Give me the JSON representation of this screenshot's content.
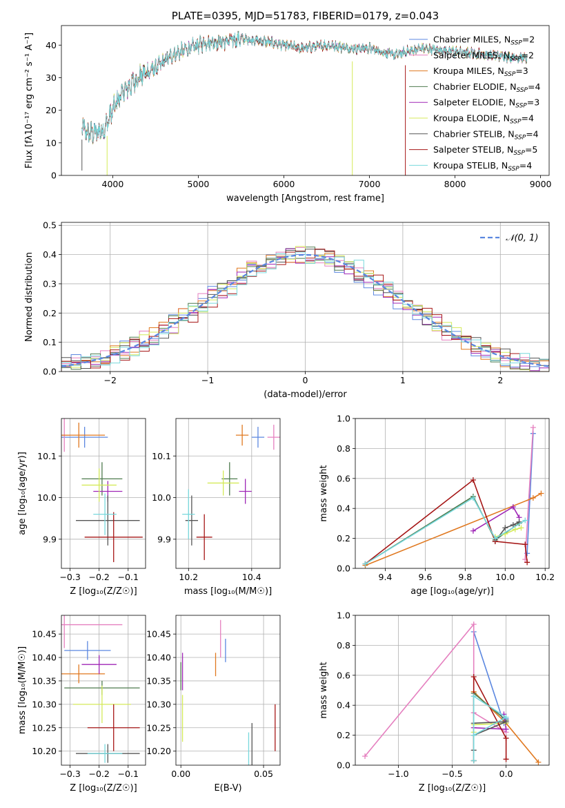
{
  "colors": {
    "c1": "#5b87e0",
    "c2": "#e57fbf",
    "c3": "#e0781f",
    "c4": "#4d7a4d",
    "c5": "#9f26b6",
    "c6": "#d4ea58",
    "c7": "#555555",
    "c8": "#a51515",
    "c9": "#77d8dc"
  },
  "chart_data": [
    {
      "id": "spectrum",
      "type": "line",
      "title": "PLATE=0395, MJD=51783, FIBERID=0179, z=0.043",
      "xlabel": "wavelength [Angstrom, rest frame]",
      "ylabel": "Flux [fλ10⁻¹⁷ erg cm⁻² s⁻¹ A⁻¹]",
      "xlim": [
        3400,
        9100
      ],
      "ylim": [
        0,
        46
      ],
      "xticks": [
        4000,
        5000,
        6000,
        7000,
        8000,
        9000
      ],
      "yticks": [
        0,
        10,
        20,
        30,
        40
      ],
      "grid": false,
      "legend_position": "top-right",
      "legend": [
        {
          "color": "c1",
          "label": "Chabrier MILES",
          "nssp": "2"
        },
        {
          "color": "c2",
          "label": "Salpeter MILES",
          "nssp": "2"
        },
        {
          "color": "c3",
          "label": "Kroupa MILES",
          "nssp": "3"
        },
        {
          "color": "c4",
          "label": "Chabrier ELODIE",
          "nssp": "4"
        },
        {
          "color": "c5",
          "label": "Salpeter ELODIE",
          "nssp": "3"
        },
        {
          "color": "c6",
          "label": "Kroupa ELODIE",
          "nssp": "4"
        },
        {
          "color": "c7",
          "label": "Chabrier STELIB",
          "nssp": "4"
        },
        {
          "color": "c8",
          "label": "Salpeter STELIB",
          "nssp": "5"
        },
        {
          "color": "c9",
          "label": "Kroupa STELIB",
          "nssp": "4"
        }
      ],
      "continuum": [
        [
          3640,
          15
        ],
        [
          3700,
          13
        ],
        [
          3800,
          13
        ],
        [
          3900,
          14
        ],
        [
          3980,
          19
        ],
        [
          4100,
          25
        ],
        [
          4300,
          30
        ],
        [
          4500,
          33
        ],
        [
          4700,
          37
        ],
        [
          4900,
          39
        ],
        [
          5100,
          41
        ],
        [
          5300,
          41
        ],
        [
          5500,
          42
        ],
        [
          5800,
          41
        ],
        [
          6000,
          40
        ],
        [
          6200,
          39
        ],
        [
          6500,
          40
        ],
        [
          6800,
          39
        ],
        [
          7000,
          39
        ],
        [
          7300,
          37
        ],
        [
          7600,
          39
        ],
        [
          8000,
          38
        ],
        [
          8400,
          37
        ],
        [
          8800,
          36
        ]
      ],
      "features": [
        [
          3640,
          1.5
        ],
        [
          3934,
          0
        ],
        [
          6800,
          0
        ],
        [
          7420,
          0
        ]
      ]
    },
    {
      "id": "residuals",
      "type": "line",
      "title": "",
      "xlabel": "(data-model)/error",
      "ylabel": "Normed distribution",
      "xlim": [
        -2.5,
        2.5
      ],
      "ylim": [
        0,
        0.51
      ],
      "xticks": [
        -2,
        -1,
        0,
        1,
        2
      ],
      "xticklabels": [
        "−2",
        "−1",
        "0",
        "1",
        "2"
      ],
      "yticks": [
        0,
        0.1,
        0.2,
        0.3,
        0.4,
        0.5
      ],
      "yticklabels": [
        "0.0",
        "0.1",
        "0.2",
        "0.3",
        "0.4",
        "0.5"
      ],
      "grid": true,
      "legend_position": "top-right",
      "legend": [
        {
          "color": "c1",
          "label": "𝒩(0, 1)",
          "style": "dashed"
        }
      ],
      "histogram_bin_width": 0.1
    },
    {
      "id": "z-age",
      "type": "scatter",
      "xlabel": "Z [log₁₀(Z/Z☉)]",
      "ylabel": "age  [log₁₀(age/yr)]",
      "xlim": [
        -0.33,
        -0.04
      ],
      "ylim": [
        9.83,
        10.19
      ],
      "xticks": [
        -0.3,
        -0.2,
        -0.1
      ],
      "xticklabels": [
        "−0.3",
        "−0.2",
        "−0.1"
      ],
      "yticks": [
        9.9,
        10.0,
        10.1
      ],
      "yticklabels": [
        "9.9",
        "10.0",
        "10.1"
      ],
      "grid": true,
      "points": [
        {
          "color": "c1",
          "x": -0.25,
          "y": 10.145,
          "xerr": 0.08,
          "yerr": 0.025
        },
        {
          "color": "c2",
          "x": -0.32,
          "y": 10.15,
          "xerr": 0.02,
          "yerr": 0.04
        },
        {
          "color": "c3",
          "x": -0.27,
          "y": 10.15,
          "xerr": 0.09,
          "yerr": 0.03
        },
        {
          "color": "c4",
          "x": -0.19,
          "y": 10.045,
          "xerr": 0.07,
          "yerr": 0.04
        },
        {
          "color": "c5",
          "x": -0.17,
          "y": 10.015,
          "xerr": 0.05,
          "yerr": 0.025
        },
        {
          "color": "c6",
          "x": -0.2,
          "y": 10.03,
          "xerr": 0.06,
          "yerr": 0.04
        },
        {
          "color": "c7",
          "x": -0.17,
          "y": 9.945,
          "xerr": 0.11,
          "yerr": 0.06
        },
        {
          "color": "c8",
          "x": -0.15,
          "y": 9.905,
          "xerr": 0.1,
          "yerr": 0.06
        },
        {
          "color": "c9",
          "x": -0.18,
          "y": 9.96,
          "xerr": 0.04,
          "yerr": 0.05
        }
      ]
    },
    {
      "id": "mass-age",
      "type": "scatter",
      "xlabel": "mass [log₁₀(M/M☉)]",
      "ylabel": "",
      "xlim": [
        10.16,
        10.49
      ],
      "ylim": [
        9.83,
        10.19
      ],
      "xticks": [
        10.2,
        10.4
      ],
      "xticklabels": [
        "10.2",
        "10.4"
      ],
      "yticks": [
        9.9,
        10.0,
        10.1
      ],
      "yticklabels": [
        "9.9",
        "10.0",
        "10.1"
      ],
      "grid": true,
      "points": [
        {
          "color": "c1",
          "x": 10.42,
          "y": 10.145,
          "xerr": 0.02,
          "yerr": 0.025
        },
        {
          "color": "c2",
          "x": 10.47,
          "y": 10.145,
          "xerr": 0.02,
          "yerr": 0.03
        },
        {
          "color": "c3",
          "x": 10.37,
          "y": 10.15,
          "xerr": 0.02,
          "yerr": 0.025
        },
        {
          "color": "c4",
          "x": 10.33,
          "y": 10.045,
          "xerr": 0.025,
          "yerr": 0.04
        },
        {
          "color": "c5",
          "x": 10.38,
          "y": 10.015,
          "xerr": 0.02,
          "yerr": 0.03
        },
        {
          "color": "c6",
          "x": 10.31,
          "y": 10.035,
          "xerr": 0.05,
          "yerr": 0.03
        },
        {
          "color": "c7",
          "x": 10.21,
          "y": 9.945,
          "xerr": 0.02,
          "yerr": 0.06
        },
        {
          "color": "c8",
          "x": 10.25,
          "y": 9.905,
          "xerr": 0.025,
          "yerr": 0.055
        },
        {
          "color": "c9",
          "x": 10.2,
          "y": 9.96,
          "xerr": 0.02,
          "yerr": 0.06
        }
      ]
    },
    {
      "id": "age-weight",
      "type": "line",
      "xlabel": "age  [log₁₀(age/yr)]",
      "ylabel": "mass weight",
      "xlim": [
        9.25,
        10.22
      ],
      "ylim": [
        0,
        1.0
      ],
      "xticks": [
        9.4,
        9.6,
        9.8,
        10.0,
        10.2
      ],
      "xticklabels": [
        "9.4",
        "9.6",
        "9.8",
        "10.0",
        "10.2"
      ],
      "yticks": [
        0,
        0.2,
        0.4,
        0.6,
        0.8,
        1.0
      ],
      "yticklabels": [
        "0.0",
        "0.2",
        "0.4",
        "0.6",
        "0.8",
        "1.0"
      ],
      "grid": true,
      "series": [
        {
          "color": "c1",
          "points": [
            [
              10.11,
              0.1
            ],
            [
              10.14,
              0.9
            ]
          ]
        },
        {
          "color": "c2",
          "points": [
            [
              10.1,
              0.06
            ],
            [
              10.14,
              0.94
            ]
          ]
        },
        {
          "color": "c3",
          "points": [
            [
              9.3,
              0.02
            ],
            [
              10.14,
              0.47
            ],
            [
              10.18,
              0.5
            ]
          ]
        },
        {
          "color": "c4",
          "points": [
            [
              9.3,
              0.03
            ],
            [
              9.84,
              0.48
            ],
            [
              9.95,
              0.19
            ],
            [
              10.07,
              0.3
            ]
          ]
        },
        {
          "color": "c5",
          "points": [
            [
              9.84,
              0.25
            ],
            [
              10.04,
              0.41
            ],
            [
              10.07,
              0.34
            ]
          ]
        },
        {
          "color": "c6",
          "points": [
            [
              9.95,
              0.21
            ],
            [
              10.0,
              0.23
            ],
            [
              10.05,
              0.26
            ],
            [
              10.08,
              0.27
            ]
          ]
        },
        {
          "color": "c7",
          "points": [
            [
              9.95,
              0.18
            ],
            [
              10.0,
              0.27
            ],
            [
              10.04,
              0.29
            ],
            [
              10.07,
              0.31
            ]
          ]
        },
        {
          "color": "c8",
          "points": [
            [
              9.3,
              0.03
            ],
            [
              9.84,
              0.59
            ],
            [
              9.95,
              0.18
            ],
            [
              10.1,
              0.16
            ],
            [
              10.11,
              0.04
            ]
          ]
        },
        {
          "color": "c9",
          "points": [
            [
              9.3,
              0.03
            ],
            [
              9.84,
              0.47
            ],
            [
              9.95,
              0.2
            ],
            [
              10.1,
              0.32
            ]
          ]
        }
      ]
    },
    {
      "id": "z-mass",
      "type": "scatter",
      "xlabel": "Z [log₁₀(Z/Z☉)]",
      "ylabel": "mass [log₁₀(M/M☉)]",
      "xlim": [
        -0.33,
        -0.04
      ],
      "ylim": [
        10.17,
        10.49
      ],
      "xticks": [
        -0.3,
        -0.2,
        -0.1
      ],
      "xticklabels": [
        "−0.3",
        "−0.2",
        "−0.1"
      ],
      "yticks": [
        10.2,
        10.25,
        10.3,
        10.35,
        10.4,
        10.45
      ],
      "yticklabels": [
        "10.20",
        "10.25",
        "10.30",
        "10.35",
        "10.40",
        "10.45"
      ],
      "grid": true,
      "points": [
        {
          "color": "c1",
          "x": -0.24,
          "y": 10.415,
          "xerr": 0.08,
          "yerr": 0.02
        },
        {
          "color": "c2",
          "x": -0.32,
          "y": 10.47,
          "xerr": 0.2,
          "yerr": 0.05
        },
        {
          "color": "c3",
          "x": -0.27,
          "y": 10.365,
          "xerr": 0.09,
          "yerr": 0.02
        },
        {
          "color": "c4",
          "x": -0.19,
          "y": 10.335,
          "xerr": 0.13,
          "yerr": 0.015
        },
        {
          "color": "c5",
          "x": -0.2,
          "y": 10.385,
          "xerr": 0.06,
          "yerr": 0.02
        },
        {
          "color": "c6",
          "x": -0.19,
          "y": 10.3,
          "xerr": 0.1,
          "yerr": 0.04
        },
        {
          "color": "c7",
          "x": -0.17,
          "y": 10.195,
          "xerr": 0.11,
          "yerr": 0.02
        },
        {
          "color": "c8",
          "x": -0.15,
          "y": 10.25,
          "xerr": 0.09,
          "yerr": 0.05
        },
        {
          "color": "c9",
          "x": -0.18,
          "y": 10.195,
          "xerr": 0.06,
          "yerr": 0.02
        }
      ]
    },
    {
      "id": "ebv-mass",
      "type": "scatter",
      "xlabel": "E(B-V)",
      "ylabel": "",
      "xlim": [
        -0.003,
        0.06
      ],
      "ylim": [
        10.17,
        10.49
      ],
      "xticks": [
        0.0,
        0.05
      ],
      "xticklabels": [
        "0.00",
        "0.05"
      ],
      "yticks": [
        10.2,
        10.25,
        10.3,
        10.35,
        10.4,
        10.45
      ],
      "yticklabels": [
        "10.20",
        "10.25",
        "10.30",
        "10.35",
        "10.40",
        "10.45"
      ],
      "grid": true,
      "points": [
        {
          "color": "c1",
          "x": 0.027,
          "y": 10.415,
          "xerr": 0,
          "yerr": 0.025
        },
        {
          "color": "c2",
          "x": 0.024,
          "y": 10.44,
          "xerr": 0,
          "yerr": 0.04
        },
        {
          "color": "c3",
          "x": 0.021,
          "y": 10.385,
          "xerr": 0,
          "yerr": 0.025
        },
        {
          "color": "c4",
          "x": 0.0,
          "y": 10.36,
          "xerr": 0,
          "yerr": 0.03
        },
        {
          "color": "c5",
          "x": 0.001,
          "y": 10.37,
          "xerr": 0,
          "yerr": 0.04
        },
        {
          "color": "c6",
          "x": 0.001,
          "y": 10.27,
          "xerr": 0,
          "yerr": 0.05
        },
        {
          "color": "c7",
          "x": 0.043,
          "y": 10.215,
          "xerr": 0,
          "yerr": 0.045
        },
        {
          "color": "c8",
          "x": 0.057,
          "y": 10.25,
          "xerr": 0,
          "yerr": 0.05
        },
        {
          "color": "c9",
          "x": 0.041,
          "y": 10.205,
          "xerr": 0,
          "yerr": 0.035
        }
      ]
    },
    {
      "id": "z-weight",
      "type": "line",
      "xlabel": "Z [log₁₀(Z/Z☉)]",
      "ylabel": "mass weight",
      "xlim": [
        -1.4,
        0.4
      ],
      "ylim": [
        0,
        1.0
      ],
      "xticks": [
        -1.0,
        -0.5,
        0.0
      ],
      "xticklabels": [
        "−1.0",
        "−0.5",
        "0.0"
      ],
      "yticks": [
        0,
        0.2,
        0.4,
        0.6,
        0.8,
        1.0
      ],
      "yticklabels": [
        "0.0",
        "0.2",
        "0.4",
        "0.6",
        "0.8",
        "1.0"
      ],
      "grid": true,
      "series": [
        {
          "color": "c1",
          "points": [
            [
              -0.3,
              0.89
            ],
            [
              -0.02,
              0.28
            ],
            [
              0.0,
              0.31
            ]
          ]
        },
        {
          "color": "c2",
          "points": [
            [
              -1.31,
              0.06
            ],
            [
              -0.3,
              0.94
            ],
            [
              -0.3,
              0.35
            ],
            [
              0.0,
              0.22
            ]
          ]
        },
        {
          "color": "c3",
          "points": [
            [
              -0.3,
              0.49
            ],
            [
              0.0,
              0.28
            ],
            [
              0.3,
              0.02
            ]
          ]
        },
        {
          "color": "c4",
          "points": [
            [
              -0.3,
              0.03
            ],
            [
              -0.3,
              0.48
            ],
            [
              0.0,
              0.3
            ]
          ]
        },
        {
          "color": "c5",
          "points": [
            [
              -0.3,
              0.25
            ],
            [
              0.0,
              0.24
            ],
            [
              -0.02,
              0.34
            ]
          ]
        },
        {
          "color": "c6",
          "points": [
            [
              -0.3,
              0.22
            ],
            [
              -0.3,
              0.27
            ],
            [
              0.0,
              0.28
            ]
          ]
        },
        {
          "color": "c7",
          "points": [
            [
              -0.3,
              0.1
            ],
            [
              -0.3,
              0.2
            ],
            [
              0.0,
              0.29
            ],
            [
              -0.3,
              0.28
            ]
          ]
        },
        {
          "color": "c8",
          "points": [
            [
              -0.3,
              0.03
            ],
            [
              -0.3,
              0.59
            ],
            [
              0.0,
              0.18
            ],
            [
              0.0,
              0.04
            ]
          ]
        },
        {
          "color": "c9",
          "points": [
            [
              -0.3,
              0.03
            ],
            [
              -0.3,
              0.46
            ],
            [
              0.0,
              0.32
            ],
            [
              -0.3,
              0.2
            ]
          ]
        }
      ]
    }
  ]
}
